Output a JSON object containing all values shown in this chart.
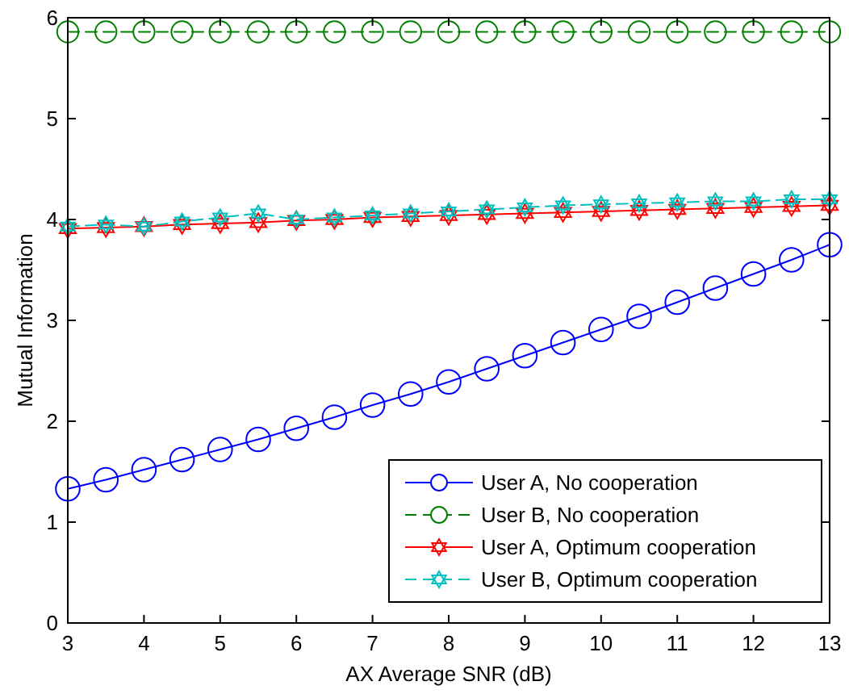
{
  "chart_data": {
    "type": "line",
    "xlabel": "AX Average SNR (dB)",
    "ylabel": "Mutual Information",
    "x": [
      3,
      3.5,
      4,
      4.5,
      5,
      5.5,
      6,
      6.5,
      7,
      7.5,
      8,
      8.5,
      9,
      9.5,
      10,
      10.5,
      11,
      11.5,
      12,
      12.5,
      13
    ],
    "series": [
      {
        "name": "User A, No cooperation",
        "color": "#0000ff",
        "marker": "circle",
        "line_style": "solid",
        "values": [
          1.33,
          1.42,
          1.52,
          1.62,
          1.72,
          1.82,
          1.93,
          2.04,
          2.16,
          2.27,
          2.39,
          2.52,
          2.65,
          2.78,
          2.91,
          3.04,
          3.18,
          3.32,
          3.46,
          3.6,
          3.75
        ]
      },
      {
        "name": "User B, No cooperation",
        "color": "#008000",
        "marker": "circle",
        "line_style": "dashed",
        "values": [
          5.86,
          5.86,
          5.86,
          5.86,
          5.86,
          5.86,
          5.86,
          5.86,
          5.86,
          5.86,
          5.86,
          5.86,
          5.86,
          5.86,
          5.86,
          5.86,
          5.86,
          5.86,
          5.86,
          5.86,
          5.86
        ]
      },
      {
        "name": "User A, Optimum cooperation",
        "color": "#ff0000",
        "marker": "star",
        "line_style": "solid",
        "values": [
          3.91,
          3.92,
          3.93,
          3.95,
          3.96,
          3.97,
          3.99,
          4.0,
          4.02,
          4.03,
          4.04,
          4.05,
          4.06,
          4.07,
          4.08,
          4.09,
          4.1,
          4.11,
          4.12,
          4.13,
          4.14
        ]
      },
      {
        "name": "User B, Optimum cooperation",
        "color": "#00bfbf",
        "marker": "star",
        "line_style": "dashed",
        "values": [
          3.93,
          3.95,
          3.93,
          3.98,
          4.02,
          4.06,
          4.0,
          4.02,
          4.04,
          4.06,
          4.08,
          4.1,
          4.12,
          4.14,
          4.15,
          4.16,
          4.17,
          4.18,
          4.18,
          4.2,
          4.2
        ]
      }
    ],
    "xlim": [
      3,
      13
    ],
    "xticks": [
      3,
      4,
      5,
      6,
      7,
      8,
      9,
      10,
      11,
      12,
      13
    ],
    "ylim": [
      0,
      6
    ],
    "yticks": [
      0,
      1,
      2,
      3,
      4,
      5,
      6
    ],
    "grid": false,
    "legend": "bottom right"
  }
}
